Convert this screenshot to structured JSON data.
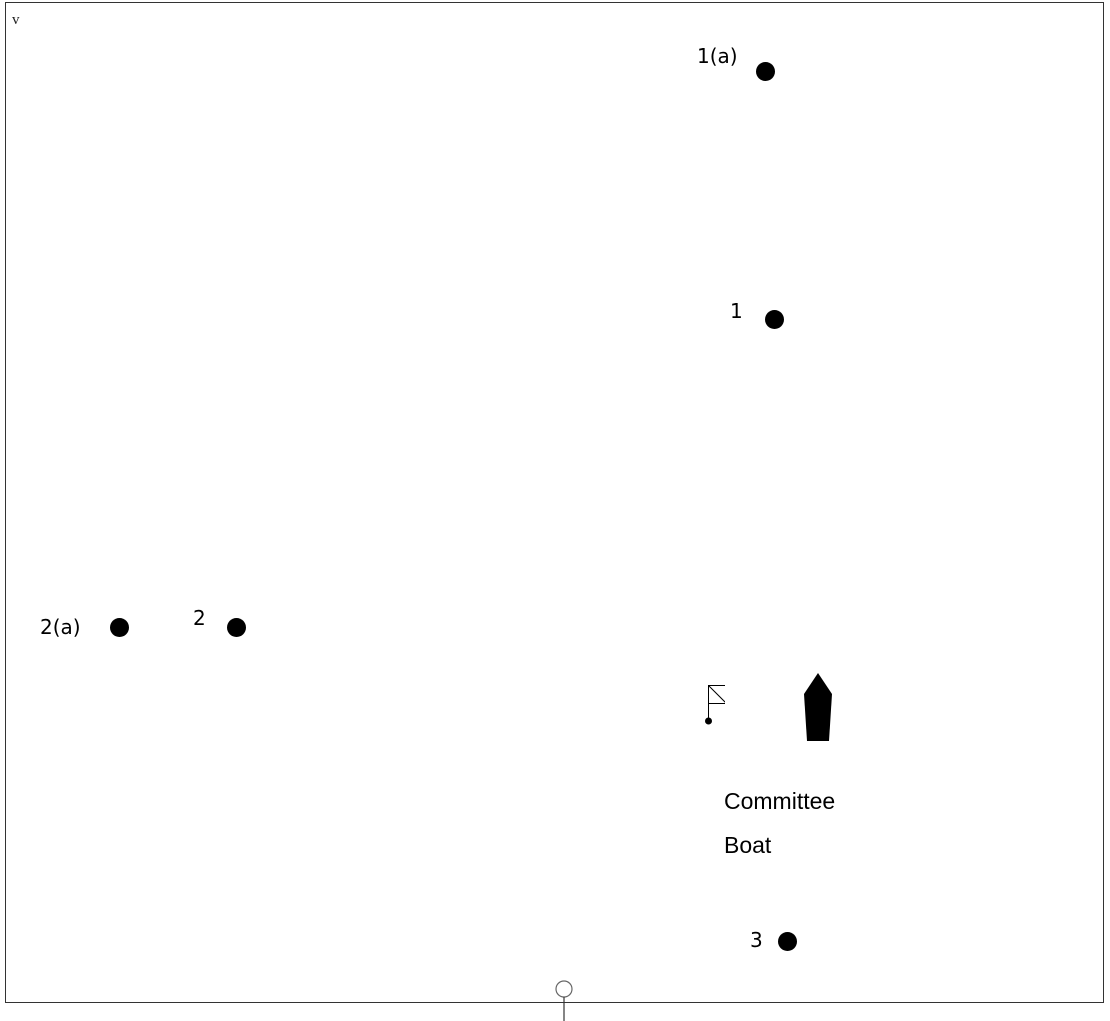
{
  "corner_label": "v",
  "marks": [
    {
      "id": "1a",
      "label": "1(a)"
    },
    {
      "id": "1",
      "label": "1"
    },
    {
      "id": "2a",
      "label": "2(a)"
    },
    {
      "id": "2",
      "label": "2"
    },
    {
      "id": "3",
      "label": "3"
    }
  ],
  "committee_boat": {
    "line1": "Committee",
    "line2": "Boat"
  },
  "colors": {
    "mark": "#000000",
    "frame": "#333333",
    "background": "#ffffff"
  },
  "icons": [
    "flag-icon",
    "boat-icon",
    "anchor-handle-icon"
  ]
}
